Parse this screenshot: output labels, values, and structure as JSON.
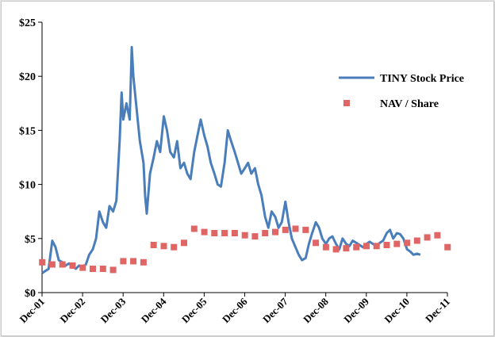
{
  "chart_data": {
    "type": "line",
    "title": "",
    "xlabel": "",
    "ylabel": "",
    "ylim": [
      0,
      25
    ],
    "y_ticks": [
      {
        "value": 0,
        "label": "$0"
      },
      {
        "value": 5,
        "label": "$5"
      },
      {
        "value": 10,
        "label": "$10"
      },
      {
        "value": 15,
        "label": "$15"
      },
      {
        "value": 20,
        "label": "$20"
      },
      {
        "value": 25,
        "label": "$25"
      }
    ],
    "x_range": [
      2001.917,
      2011.917
    ],
    "x_ticks": [
      {
        "value": 2001.917,
        "label": "Dec-01"
      },
      {
        "value": 2002.917,
        "label": "Dec-02"
      },
      {
        "value": 2003.917,
        "label": "Dec-03"
      },
      {
        "value": 2004.917,
        "label": "Dec-04"
      },
      {
        "value": 2005.917,
        "label": "Dec-05"
      },
      {
        "value": 2006.917,
        "label": "Dec-06"
      },
      {
        "value": 2007.917,
        "label": "Dec-07"
      },
      {
        "value": 2008.917,
        "label": "Dec-08"
      },
      {
        "value": 2009.917,
        "label": "Dec-09"
      },
      {
        "value": 2010.917,
        "label": "Dec-10"
      },
      {
        "value": 2011.917,
        "label": "Dec-11"
      }
    ],
    "grid": false,
    "legend_position": "right",
    "series": [
      {
        "name": "TINY Stock Price",
        "kind": "line",
        "color": "#4a7ebb",
        "points": [
          [
            2001.92,
            1.8
          ],
          [
            2002.0,
            2.0
          ],
          [
            2002.08,
            2.2
          ],
          [
            2002.17,
            4.8
          ],
          [
            2002.25,
            4.2
          ],
          [
            2002.33,
            3.0
          ],
          [
            2002.42,
            2.8
          ],
          [
            2002.5,
            2.5
          ],
          [
            2002.58,
            2.7
          ],
          [
            2002.67,
            2.4
          ],
          [
            2002.75,
            2.2
          ],
          [
            2002.83,
            2.5
          ],
          [
            2002.92,
            2.4
          ],
          [
            2003.0,
            2.6
          ],
          [
            2003.08,
            3.5
          ],
          [
            2003.17,
            4.0
          ],
          [
            2003.25,
            5.0
          ],
          [
            2003.33,
            7.5
          ],
          [
            2003.42,
            6.5
          ],
          [
            2003.5,
            6.0
          ],
          [
            2003.58,
            8.0
          ],
          [
            2003.67,
            7.5
          ],
          [
            2003.75,
            8.5
          ],
          [
            2003.83,
            14.0
          ],
          [
            2003.88,
            18.5
          ],
          [
            2003.92,
            16.0
          ],
          [
            2004.0,
            17.5
          ],
          [
            2004.08,
            16.0
          ],
          [
            2004.13,
            22.7
          ],
          [
            2004.17,
            20.0
          ],
          [
            2004.25,
            17.0
          ],
          [
            2004.33,
            14.0
          ],
          [
            2004.42,
            12.0
          ],
          [
            2004.46,
            9.0
          ],
          [
            2004.5,
            7.3
          ],
          [
            2004.58,
            11.0
          ],
          [
            2004.67,
            12.5
          ],
          [
            2004.75,
            14.0
          ],
          [
            2004.83,
            13.0
          ],
          [
            2004.92,
            16.3
          ],
          [
            2005.0,
            15.0
          ],
          [
            2005.08,
            13.0
          ],
          [
            2005.17,
            12.5
          ],
          [
            2005.25,
            14.0
          ],
          [
            2005.33,
            11.5
          ],
          [
            2005.42,
            12.0
          ],
          [
            2005.5,
            11.0
          ],
          [
            2005.58,
            10.5
          ],
          [
            2005.67,
            13.0
          ],
          [
            2005.75,
            14.5
          ],
          [
            2005.83,
            16.0
          ],
          [
            2005.92,
            14.5
          ],
          [
            2006.0,
            13.5
          ],
          [
            2006.08,
            12.0
          ],
          [
            2006.17,
            11.0
          ],
          [
            2006.25,
            10.0
          ],
          [
            2006.33,
            9.8
          ],
          [
            2006.42,
            12.0
          ],
          [
            2006.5,
            15.0
          ],
          [
            2006.58,
            14.0
          ],
          [
            2006.67,
            13.0
          ],
          [
            2006.75,
            12.0
          ],
          [
            2006.83,
            11.0
          ],
          [
            2006.92,
            11.5
          ],
          [
            2007.0,
            12.0
          ],
          [
            2007.08,
            11.0
          ],
          [
            2007.17,
            11.5
          ],
          [
            2007.25,
            10.0
          ],
          [
            2007.33,
            9.0
          ],
          [
            2007.42,
            7.0
          ],
          [
            2007.5,
            6.0
          ],
          [
            2007.58,
            7.5
          ],
          [
            2007.67,
            7.0
          ],
          [
            2007.75,
            6.0
          ],
          [
            2007.83,
            6.5
          ],
          [
            2007.92,
            8.4
          ],
          [
            2008.0,
            6.5
          ],
          [
            2008.08,
            5.0
          ],
          [
            2008.17,
            4.2
          ],
          [
            2008.25,
            3.5
          ],
          [
            2008.33,
            3.0
          ],
          [
            2008.42,
            3.2
          ],
          [
            2008.5,
            4.5
          ],
          [
            2008.58,
            5.5
          ],
          [
            2008.67,
            6.5
          ],
          [
            2008.75,
            6.0
          ],
          [
            2008.83,
            5.0
          ],
          [
            2008.92,
            4.5
          ],
          [
            2009.0,
            5.0
          ],
          [
            2009.08,
            5.2
          ],
          [
            2009.17,
            4.5
          ],
          [
            2009.25,
            4.0
          ],
          [
            2009.33,
            5.0
          ],
          [
            2009.42,
            4.5
          ],
          [
            2009.5,
            4.3
          ],
          [
            2009.58,
            4.8
          ],
          [
            2009.67,
            4.6
          ],
          [
            2009.75,
            4.4
          ],
          [
            2009.83,
            4.2
          ],
          [
            2009.92,
            4.5
          ],
          [
            2010.0,
            4.7
          ],
          [
            2010.08,
            4.5
          ],
          [
            2010.17,
            4.3
          ],
          [
            2010.25,
            4.6
          ],
          [
            2010.33,
            4.8
          ],
          [
            2010.42,
            5.5
          ],
          [
            2010.5,
            5.8
          ],
          [
            2010.58,
            5.0
          ],
          [
            2010.67,
            5.5
          ],
          [
            2010.75,
            5.4
          ],
          [
            2010.83,
            5.0
          ],
          [
            2010.92,
            4.0
          ],
          [
            2011.0,
            3.8
          ],
          [
            2011.08,
            3.5
          ],
          [
            2011.17,
            3.6
          ],
          [
            2011.25,
            3.5
          ]
        ]
      },
      {
        "name": "NAV / Share",
        "kind": "markers",
        "color": "#e06666",
        "points": [
          [
            2001.92,
            2.8
          ],
          [
            2002.17,
            2.6
          ],
          [
            2002.42,
            2.6
          ],
          [
            2002.67,
            2.5
          ],
          [
            2002.92,
            2.3
          ],
          [
            2003.17,
            2.2
          ],
          [
            2003.42,
            2.2
          ],
          [
            2003.67,
            2.1
          ],
          [
            2003.92,
            2.9
          ],
          [
            2004.17,
            2.9
          ],
          [
            2004.42,
            2.8
          ],
          [
            2004.67,
            4.4
          ],
          [
            2004.92,
            4.3
          ],
          [
            2005.17,
            4.2
          ],
          [
            2005.42,
            4.6
          ],
          [
            2005.67,
            5.9
          ],
          [
            2005.92,
            5.6
          ],
          [
            2006.17,
            5.5
          ],
          [
            2006.42,
            5.5
          ],
          [
            2006.67,
            5.5
          ],
          [
            2006.92,
            5.3
          ],
          [
            2007.17,
            5.2
          ],
          [
            2007.42,
            5.5
          ],
          [
            2007.67,
            5.6
          ],
          [
            2007.92,
            5.8
          ],
          [
            2008.17,
            5.9
          ],
          [
            2008.42,
            5.8
          ],
          [
            2008.67,
            4.6
          ],
          [
            2008.92,
            4.2
          ],
          [
            2009.17,
            4.0
          ],
          [
            2009.42,
            4.1
          ],
          [
            2009.67,
            4.2
          ],
          [
            2009.92,
            4.3
          ],
          [
            2010.17,
            4.3
          ],
          [
            2010.42,
            4.4
          ],
          [
            2010.67,
            4.5
          ],
          [
            2010.92,
            4.6
          ],
          [
            2011.17,
            4.8
          ],
          [
            2011.42,
            5.1
          ],
          [
            2011.67,
            5.3
          ],
          [
            2011.92,
            4.2
          ]
        ]
      }
    ]
  },
  "legend": {
    "items": [
      {
        "label": "TINY Stock Price"
      },
      {
        "label": "NAV / Share"
      }
    ]
  }
}
